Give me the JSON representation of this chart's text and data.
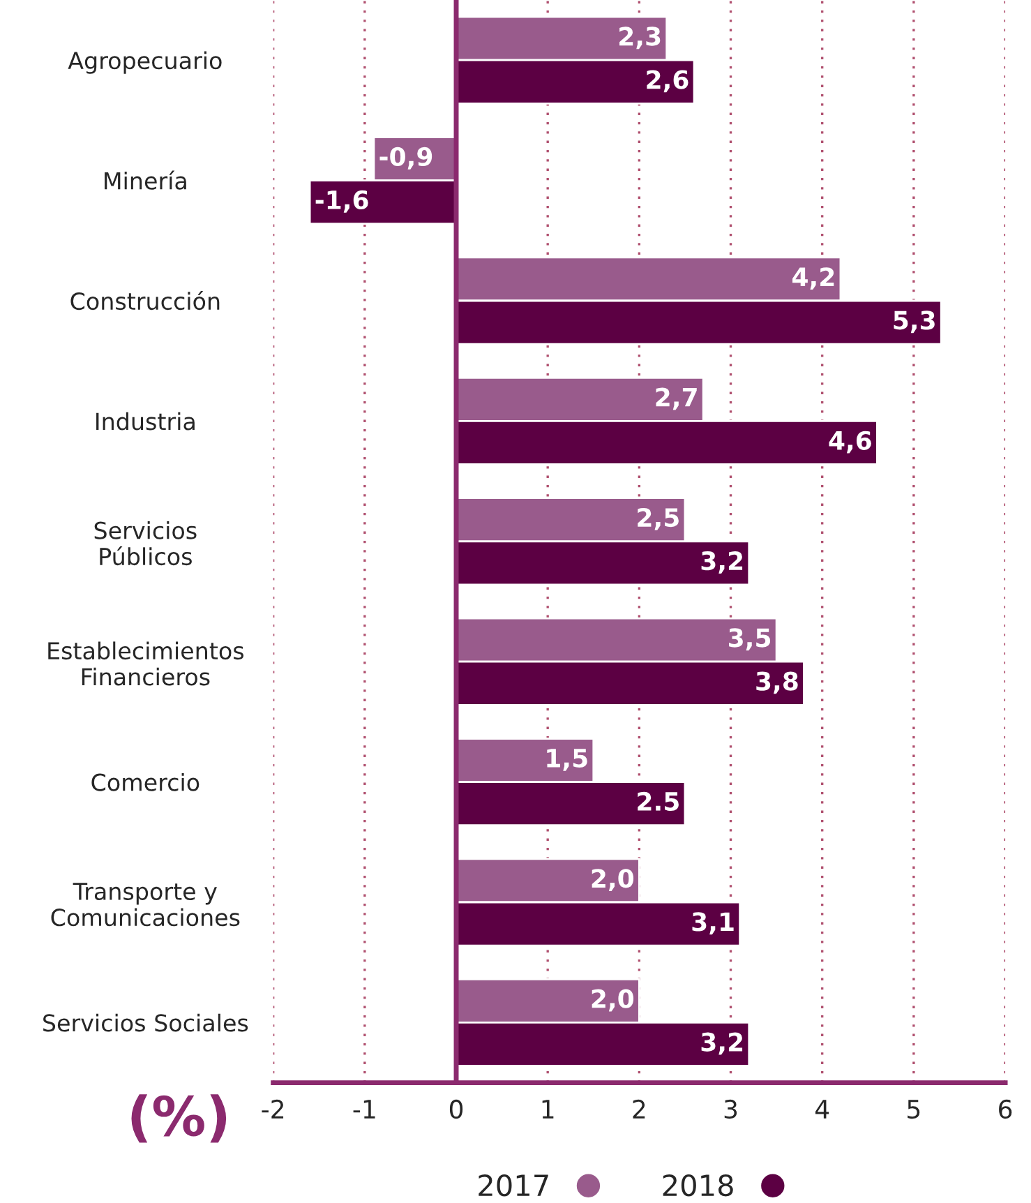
{
  "chart_data": {
    "type": "bar",
    "orientation": "horizontal",
    "xlabel": "(%)",
    "categories": [
      "Agropecuario",
      "Minería",
      "Construcción",
      "Industria",
      "Servicios\nPúblicos",
      "Establecimientos\nFinancieros",
      "Comercio",
      "Transporte y\nComunicaciones",
      "Servicios Sociales"
    ],
    "series": [
      {
        "name": "2017",
        "color": "#995b8c",
        "values": [
          2.3,
          -0.9,
          4.2,
          2.7,
          2.5,
          3.5,
          1.5,
          2.0,
          2.0
        ],
        "value_labels": [
          "2,3",
          "-0,9",
          "4,2",
          "2,7",
          "2,5",
          "3,5",
          "1,5",
          "2,0",
          "2,0"
        ]
      },
      {
        "name": "2018",
        "color": "#5c0043",
        "values": [
          2.6,
          -1.6,
          5.3,
          4.6,
          3.2,
          3.8,
          2.5,
          3.1,
          3.2
        ],
        "value_labels": [
          "2,6",
          "-1,6",
          "5,3",
          "4,6",
          "3,2",
          "3,8",
          "2.5",
          "3,1",
          "3,2"
        ]
      }
    ],
    "xlim": [
      -2,
      6
    ],
    "xticks": [
      -2,
      -1,
      0,
      1,
      2,
      3,
      4,
      5,
      6
    ],
    "grid": "x",
    "legend": "bottom",
    "ref_lines": [
      {
        "axis": "x",
        "value": 0,
        "color": "#8b2a6e"
      }
    ]
  }
}
